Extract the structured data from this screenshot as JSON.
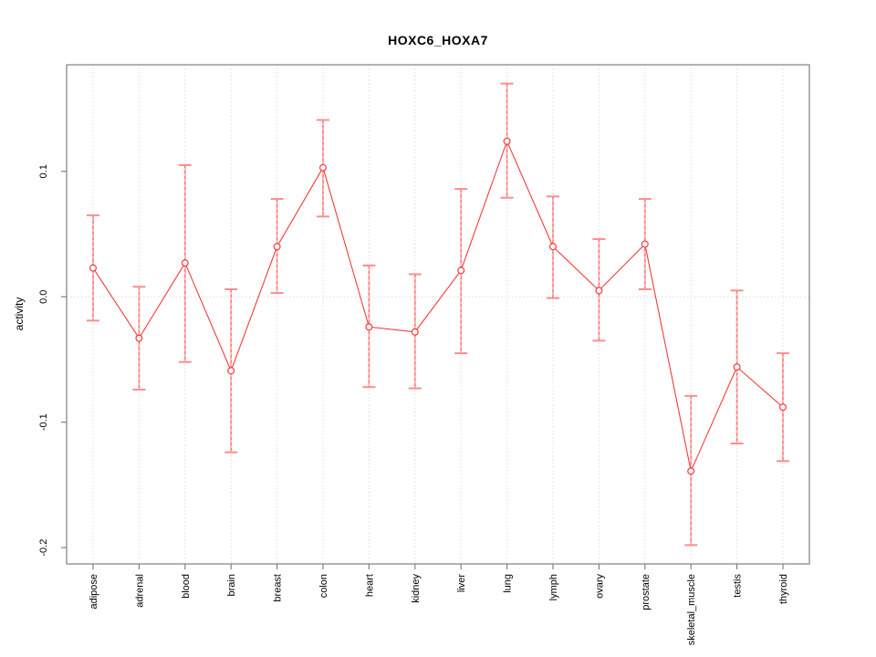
{
  "title": "HOXC6_HOXA7",
  "chart_data": {
    "type": "line",
    "title": "HOXC6_HOXA7",
    "xlabel": "",
    "ylabel": "activity",
    "categories": [
      "adipose",
      "adrenal",
      "blood",
      "brain",
      "breast",
      "colon",
      "heart",
      "kidney",
      "liver",
      "lung",
      "lymph",
      "ovary",
      "prostate",
      "skeletal_muscle",
      "testis",
      "thyroid"
    ],
    "series": [
      {
        "name": "activity",
        "values": [
          0.023,
          -0.033,
          0.027,
          -0.059,
          0.04,
          0.103,
          -0.024,
          -0.028,
          0.021,
          0.124,
          0.04,
          0.005,
          0.042,
          -0.139,
          -0.056,
          -0.088
        ],
        "lower": [
          -0.019,
          -0.074,
          -0.052,
          -0.124,
          0.003,
          0.064,
          -0.072,
          -0.073,
          -0.045,
          0.079,
          -0.001,
          -0.035,
          0.006,
          -0.198,
          -0.117,
          -0.131
        ],
        "upper": [
          0.065,
          0.008,
          0.105,
          0.006,
          0.078,
          0.141,
          0.025,
          0.018,
          0.086,
          0.17,
          0.08,
          0.046,
          0.078,
          -0.079,
          0.005,
          -0.045
        ]
      }
    ],
    "yticks": [
      -0.2,
      -0.1,
      0.0,
      0.1
    ],
    "ytick_labels": [
      "-0.2",
      "-0.1",
      "0.0",
      "0.1"
    ],
    "ylim": [
      -0.213,
      0.185
    ],
    "grid": "vertical dotted line at each category; horizontal dotted line at y=0",
    "legend_position": "none",
    "marker": "open-circle",
    "error_bars": true
  },
  "colors": {
    "line": "#f43a3a",
    "marker_stroke": "#f43a3a",
    "error_line": "#ffb3b3",
    "error_dash": "#fb6868",
    "error_cap": "#ff8d8d",
    "grid": "#dcdcdc",
    "axis_box": "#999999",
    "tick": "#808080",
    "text": "#000000",
    "background": "#ffffff"
  }
}
